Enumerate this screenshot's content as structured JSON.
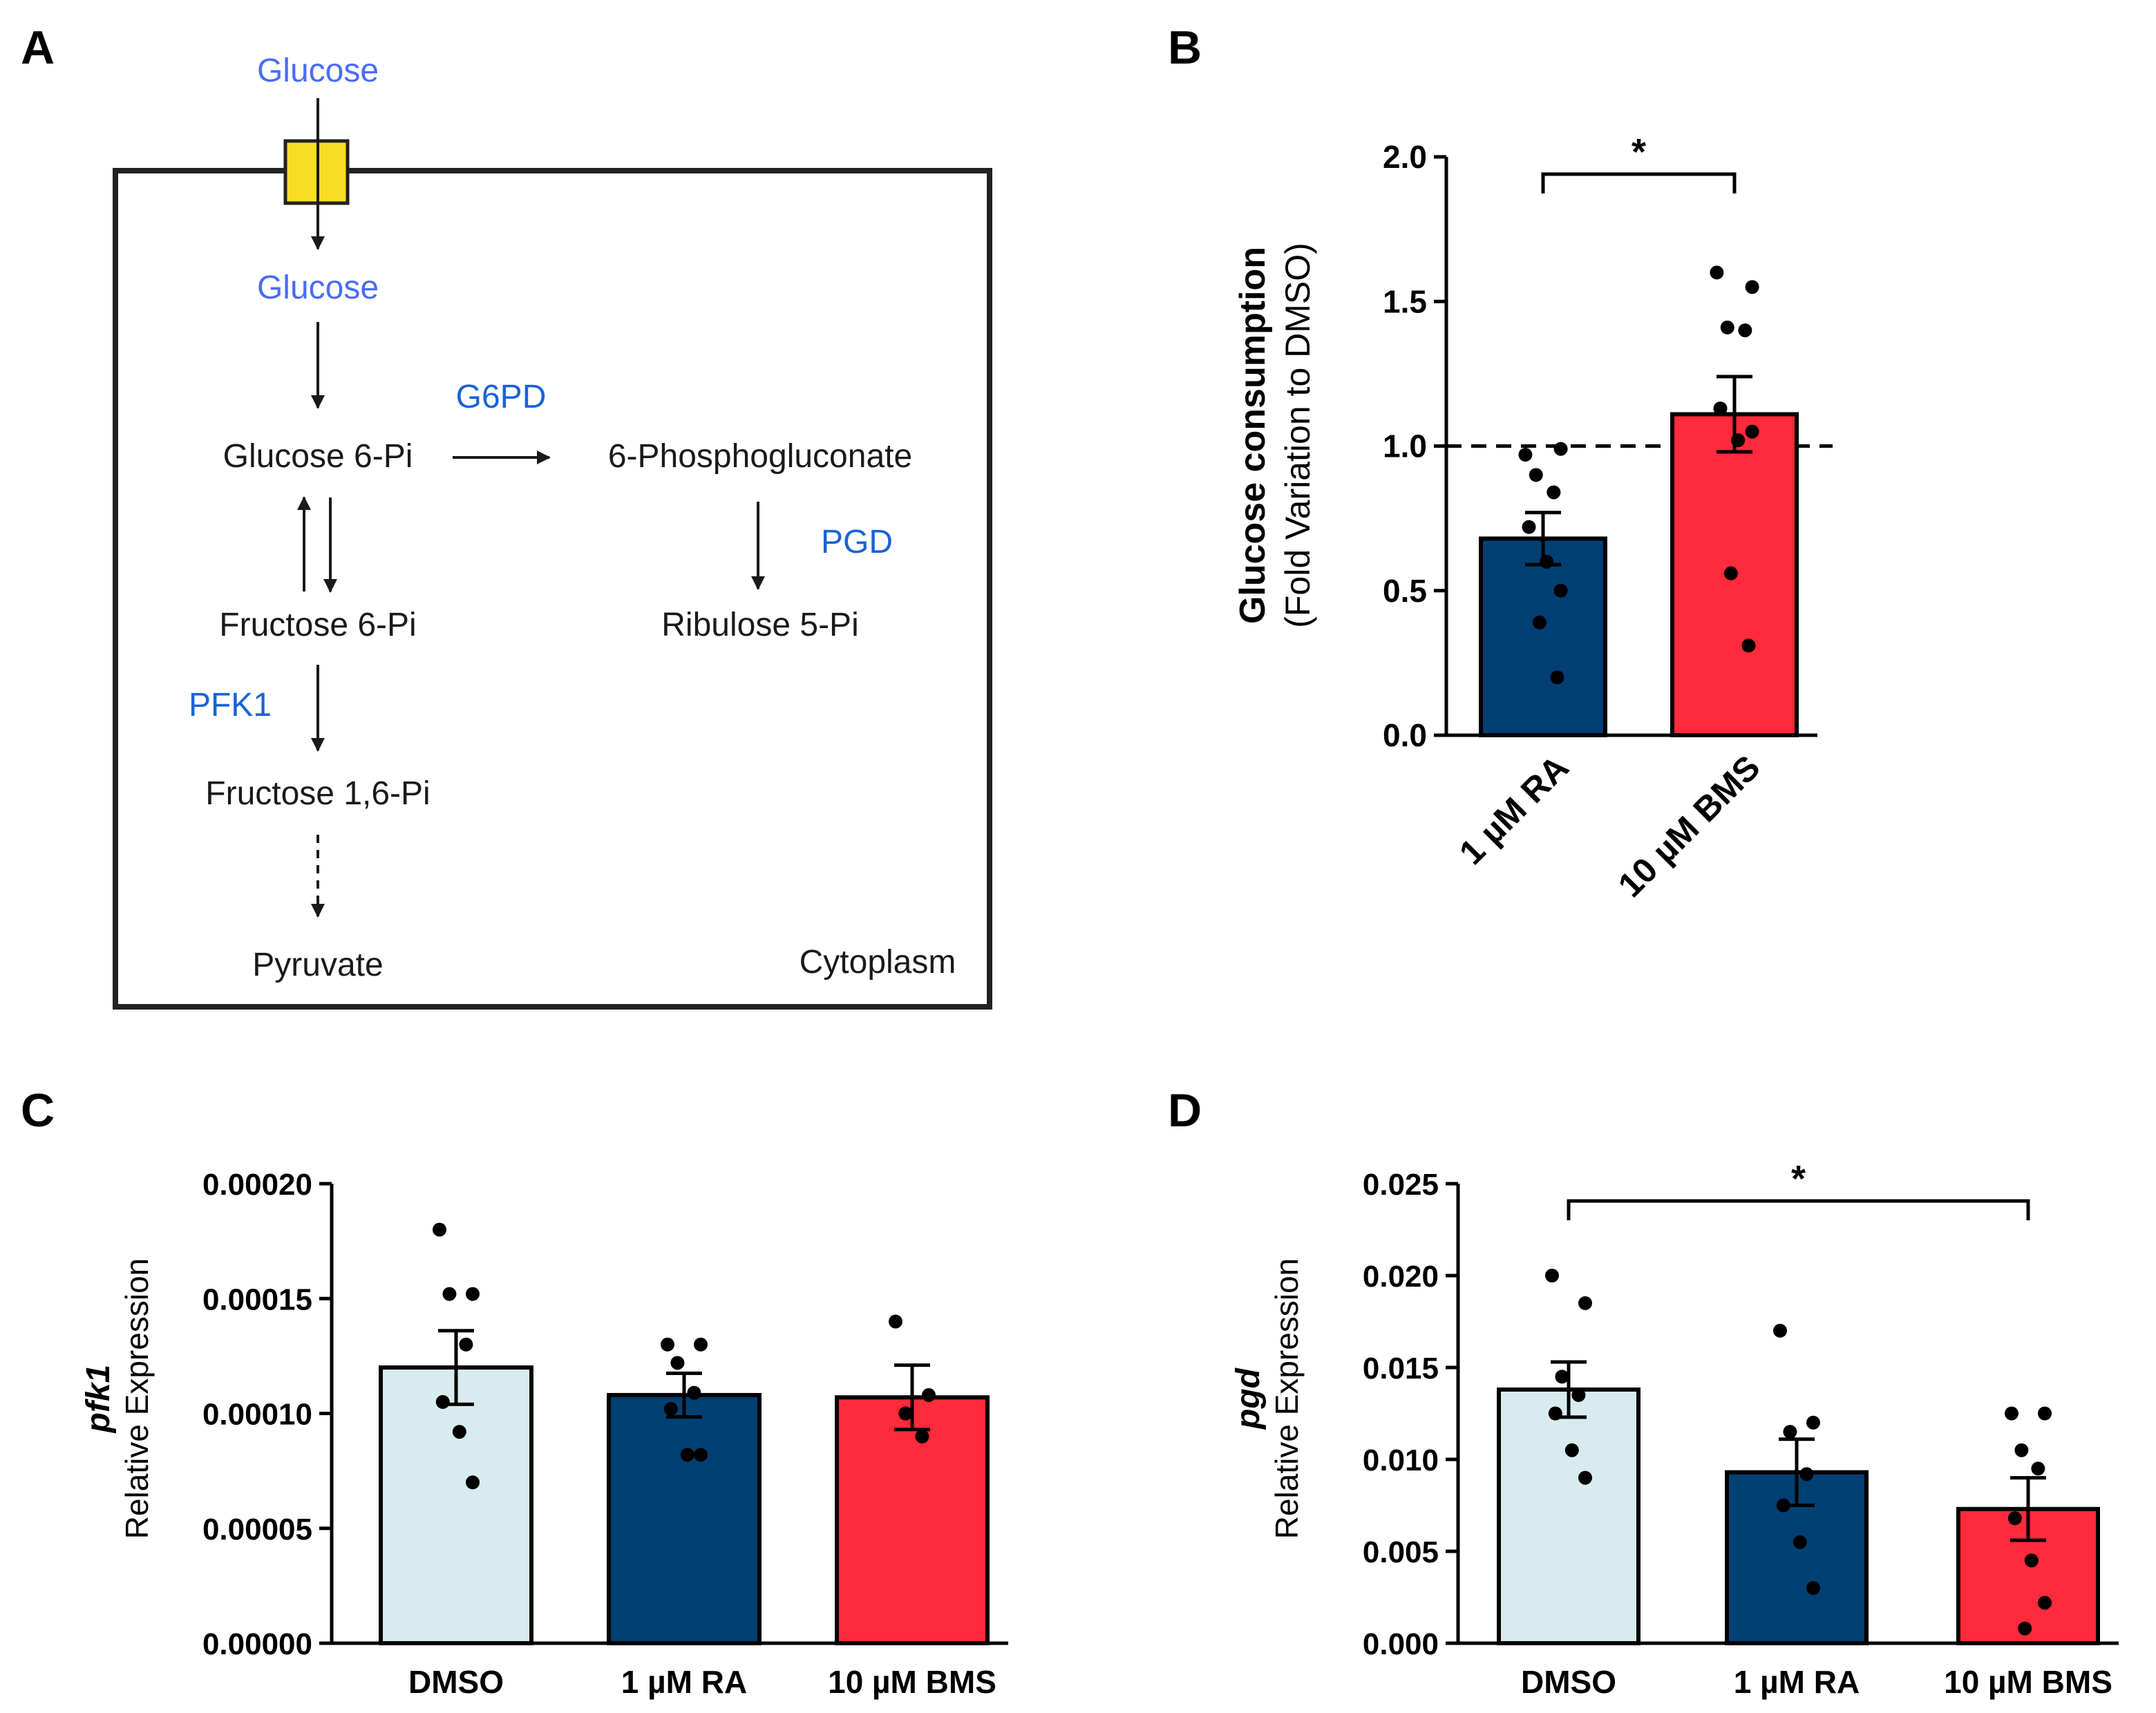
{
  "panels": {
    "a": {
      "letter": "A"
    },
    "b": {
      "letter": "B"
    },
    "c": {
      "letter": "C"
    },
    "d": {
      "letter": "D"
    }
  },
  "pathway": {
    "glucose_outside": "Glucose",
    "glucose_inside": "Glucose",
    "glucose_6pi": "Glucose 6-Pi",
    "g6pd": "G6PD",
    "phosphogluconate": "6-Phosphogluconate",
    "pgd": "PGD",
    "ribulose_5pi": "Ribulose 5-Pi",
    "fructose_6pi": "Fructose 6-Pi",
    "pfk1": "PFK1",
    "fructose_16pi": "Fructose 1,6-Pi",
    "pyruvate": "Pyruvate",
    "cytoplasm": "Cytoplasm",
    "colors": {
      "transporter": "#f8de22",
      "metabolite": "#4a6cf7",
      "enzyme": "#1a63d6"
    }
  },
  "chart_data": [
    {
      "id": "B",
      "type": "bar",
      "ylabel_line1": "Glucose consumption",
      "ylabel_line2": "(Fold Variation to DMSO)",
      "ylim": [
        0,
        2.0
      ],
      "yticks": [
        "0.0",
        "0.5",
        "1.0",
        "1.5",
        "2.0"
      ],
      "ytick_values": [
        0,
        0.5,
        1.0,
        1.5,
        2.0
      ],
      "reference_line": 1.0,
      "categories": [
        "1 µM RA",
        "10 µM BMS"
      ],
      "values": [
        0.68,
        1.11
      ],
      "sem": [
        0.09,
        0.13
      ],
      "colors": [
        "#023f73",
        "#ff2a3b"
      ],
      "points": [
        [
          0.97,
          0.99,
          0.9,
          0.84,
          0.72,
          0.6,
          0.5,
          0.39,
          0.2
        ],
        [
          1.6,
          1.55,
          1.41,
          1.4,
          1.13,
          1.02,
          1.05,
          0.56,
          0.31
        ]
      ],
      "significance": [
        {
          "from": 0,
          "to": 1,
          "label": "*"
        }
      ]
    },
    {
      "id": "C",
      "type": "bar",
      "ylabel_line1": "pfk1",
      "ylabel_line2": "Relative Expression",
      "ylim": [
        0,
        0.0002
      ],
      "yticks": [
        "0.00000",
        "0.00005",
        "0.00010",
        "0.00015",
        "0.00020"
      ],
      "ytick_values": [
        0,
        5e-05,
        0.0001,
        0.00015,
        0.0002
      ],
      "categories": [
        "DMSO",
        "1 µM RA",
        "10 µM BMS"
      ],
      "values": [
        0.00012,
        0.000108,
        0.000107
      ],
      "sem": [
        1.6e-05,
        9.5e-06,
        1.4e-05
      ],
      "colors": [
        "#d8ecf0",
        "#023f73",
        "#ff2a3b"
      ],
      "points": [
        [
          0.00018,
          0.000152,
          0.000152,
          0.00013,
          0.000105,
          9.2e-05,
          7e-05
        ],
        [
          0.00013,
          0.00013,
          0.000122,
          0.000109,
          0.000102,
          8.2e-05,
          8.2e-05
        ],
        [
          0.00014,
          0.000108,
          0.0001,
          9e-05
        ]
      ],
      "significance": []
    },
    {
      "id": "D",
      "type": "bar",
      "ylabel_line1": "pgd",
      "ylabel_line2": "Relative Expression",
      "ylim": [
        0,
        0.025
      ],
      "yticks": [
        "0.000",
        "0.005",
        "0.010",
        "0.015",
        "0.020",
        "0.025"
      ],
      "ytick_values": [
        0,
        0.005,
        0.01,
        0.015,
        0.02,
        0.025
      ],
      "categories": [
        "DMSO",
        "1 µM RA",
        "10 µM BMS"
      ],
      "values": [
        0.0138,
        0.0093,
        0.0073
      ],
      "sem": [
        0.0015,
        0.0018,
        0.0017
      ],
      "colors": [
        "#d8ecf0",
        "#023f73",
        "#ff2a3b"
      ],
      "points": [
        [
          0.02,
          0.0185,
          0.0145,
          0.0135,
          0.0125,
          0.0105,
          0.009
        ],
        [
          0.017,
          0.012,
          0.0115,
          0.0092,
          0.0075,
          0.0055,
          0.003
        ],
        [
          0.0125,
          0.0125,
          0.0105,
          0.0095,
          0.0068,
          0.0045,
          0.0022,
          0.0008
        ]
      ],
      "significance": [
        {
          "from": 0,
          "to": 2,
          "label": "*"
        }
      ]
    }
  ]
}
